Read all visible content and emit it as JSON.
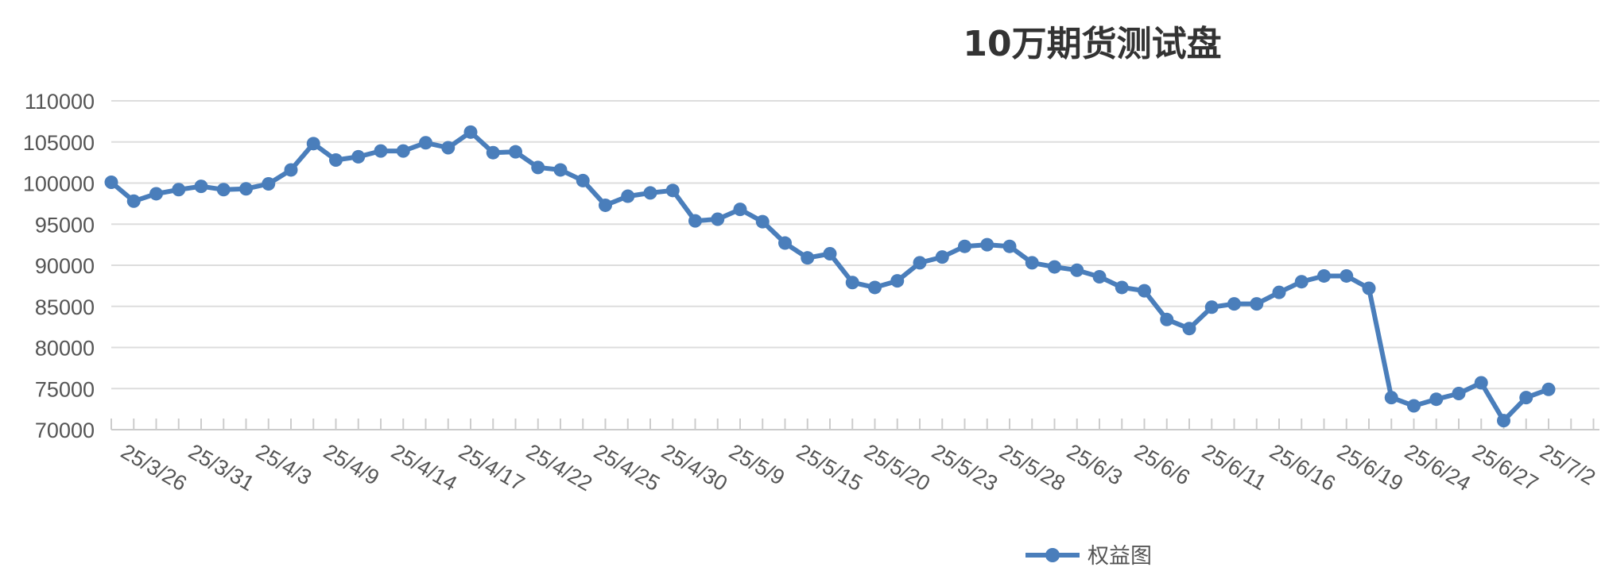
{
  "chart_data": {
    "type": "line",
    "title": "10万期货测试盘",
    "xlabel": "",
    "ylabel": "",
    "ylim": [
      70000,
      110000
    ],
    "y_ticks": [
      70000,
      75000,
      80000,
      85000,
      90000,
      95000,
      100000,
      105000,
      110000
    ],
    "grid": true,
    "legend_position": "bottom-center",
    "x_tick_labels": [
      "25/3/26",
      "25/3/31",
      "25/4/3",
      "25/4/9",
      "25/4/14",
      "25/4/17",
      "25/4/22",
      "25/4/25",
      "25/4/30",
      "25/5/9",
      "25/5/15",
      "25/5/20",
      "25/5/23",
      "25/5/28",
      "25/6/3",
      "25/6/6",
      "25/6/11",
      "25/6/16",
      "25/6/19",
      "25/6/24",
      "25/6/27",
      "25/7/2"
    ],
    "series": [
      {
        "name": "权益图",
        "color": "#4a7ebb",
        "values": [
          100100,
          97800,
          98700,
          99200,
          99600,
          99200,
          99300,
          99900,
          101600,
          104800,
          102800,
          103200,
          103900,
          103900,
          104900,
          104300,
          106200,
          103700,
          103800,
          101900,
          101600,
          100300,
          97300,
          98400,
          98800,
          99100,
          95400,
          95600,
          96800,
          95300,
          92700,
          90900,
          91400,
          87900,
          87300,
          88100,
          90300,
          91000,
          92300,
          92500,
          92300,
          90300,
          89800,
          89400,
          88600,
          87300,
          86900,
          83400,
          82300,
          84900,
          85300,
          85300,
          86700,
          88000,
          88700,
          88700,
          87200,
          73900,
          72900,
          73700,
          74400,
          75700,
          71100,
          73900,
          74900
        ]
      }
    ]
  }
}
